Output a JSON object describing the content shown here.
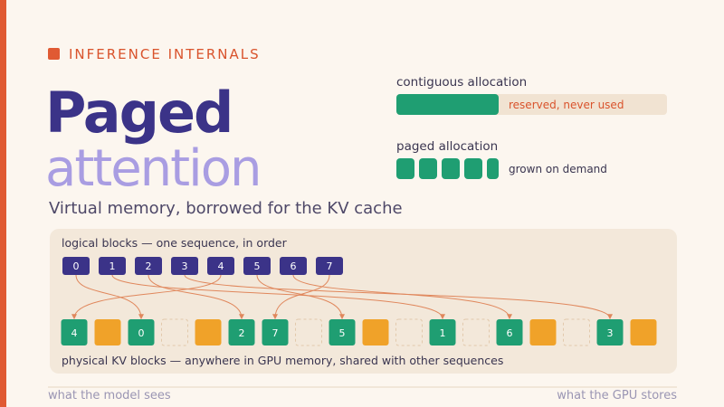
{
  "eyebrow": "INFERENCE INTERNALS",
  "title": {
    "line1": "Paged",
    "line2": "attention"
  },
  "subtitle": "Virtual memory, borrowed for the KV cache",
  "contiguous": {
    "label": "contiguous allocation",
    "note": "reserved, never used"
  },
  "paged": {
    "label": "paged allocation",
    "note": "grown on demand"
  },
  "logical": {
    "caption": "logical blocks — one sequence, in order",
    "color": "#3b3388",
    "blocks": [
      "0",
      "1",
      "2",
      "3",
      "4",
      "5",
      "6",
      "7"
    ]
  },
  "physical": {
    "caption": "physical KV blocks — anywhere in GPU memory, shared with other sequences",
    "slots": [
      {
        "label": "4",
        "color": "#1f9e72"
      },
      {
        "color": "#f0a229"
      },
      {
        "label": "0",
        "color": "#1f9e72"
      },
      {},
      {
        "color": "#f0a229"
      },
      {
        "label": "2",
        "color": "#1f9e72"
      },
      {
        "label": "7",
        "color": "#1f9e72"
      },
      {},
      {
        "label": "5",
        "color": "#1f9e72"
      },
      {
        "color": "#f0a229"
      },
      {},
      {
        "label": "1",
        "color": "#1f9e72"
      },
      {},
      {
        "label": "6",
        "color": "#1f9e72"
      },
      {
        "color": "#f0a229"
      },
      {},
      {
        "label": "3",
        "color": "#1f9e72"
      },
      {
        "color": "#f0a229"
      }
    ]
  },
  "footer": {
    "left": "what the model sees",
    "right": "what the GPU stores"
  }
}
